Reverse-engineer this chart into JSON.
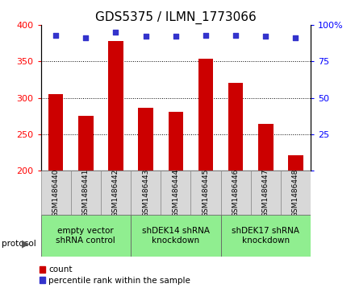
{
  "title": "GDS5375 / ILMN_1773066",
  "samples": [
    "GSM1486440",
    "GSM1486441",
    "GSM1486442",
    "GSM1486443",
    "GSM1486444",
    "GSM1486445",
    "GSM1486446",
    "GSM1486447",
    "GSM1486448"
  ],
  "counts": [
    305,
    275,
    378,
    286,
    281,
    354,
    321,
    264,
    221
  ],
  "percentiles": [
    93,
    91,
    95,
    92,
    92,
    93,
    93,
    92,
    91
  ],
  "ylim_left": [
    200,
    400
  ],
  "ylim_right": [
    0,
    100
  ],
  "yticks_left": [
    200,
    250,
    300,
    350,
    400
  ],
  "yticks_right": [
    0,
    25,
    50,
    75,
    100
  ],
  "groups": [
    {
      "label": "empty vector\nshRNA control",
      "start": 0,
      "end": 3,
      "color": "#90EE90"
    },
    {
      "label": "shDEK14 shRNA\nknockdown",
      "start": 3,
      "end": 6,
      "color": "#90EE90"
    },
    {
      "label": "shDEK17 shRNA\nknockdown",
      "start": 6,
      "end": 9,
      "color": "#90EE90"
    }
  ],
  "bar_color": "#cc0000",
  "dot_color": "#3333cc",
  "bar_width": 0.5,
  "title_fontsize": 11,
  "tick_fontsize": 8,
  "sample_fontsize": 6.5,
  "group_fontsize": 7.5,
  "legend_fontsize": 7.5
}
